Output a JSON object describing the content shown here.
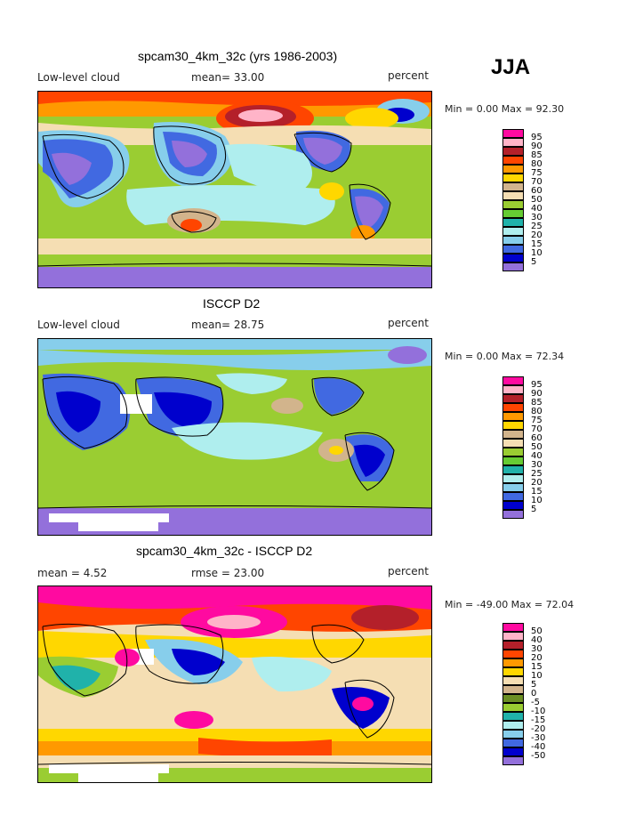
{
  "season": "JJA",
  "panels": [
    {
      "title": "spcam30_4km_32c (yrs 1986-2003)",
      "left": "Low-level cloud",
      "middle": "mean=  33.00",
      "units": "percent",
      "minmax": "Min =   0.00 Max =  92.30",
      "legend_labels": [
        "95",
        "90",
        "85",
        "80",
        "75",
        "70",
        "60",
        "50",
        "40",
        "30",
        "25",
        "20",
        "15",
        "10",
        "5"
      ],
      "legend_colors": [
        "#ff0aa0",
        "#ffb4c8",
        "#b4202a",
        "#ff4500",
        "#ff9900",
        "#ffd700",
        "#d2b48c",
        "#f5deb3",
        "#9acd32",
        "#66cc33",
        "#20b2aa",
        "#afeeee",
        "#87ceeb",
        "#4169e1",
        "#0000cd",
        "#9370db"
      ]
    },
    {
      "title": "ISCCP D2",
      "left": "Low-level cloud",
      "middle": "mean=  28.75",
      "units": "percent",
      "minmax": "Min =   0.00 Max =  72.34",
      "legend_labels": [
        "95",
        "90",
        "85",
        "80",
        "75",
        "70",
        "60",
        "50",
        "40",
        "30",
        "25",
        "20",
        "15",
        "10",
        "5"
      ],
      "legend_colors": [
        "#ff0aa0",
        "#ffb4c8",
        "#b4202a",
        "#ff4500",
        "#ff9900",
        "#ffd700",
        "#d2b48c",
        "#f5deb3",
        "#9acd32",
        "#66cc33",
        "#20b2aa",
        "#afeeee",
        "#87ceeb",
        "#4169e1",
        "#0000cd",
        "#9370db"
      ]
    },
    {
      "title": "spcam30_4km_32c - ISCCP D2",
      "left": "mean =   4.52",
      "middle": "rmse =  23.00",
      "units": "percent",
      "minmax": "Min = -49.00 Max =  72.04",
      "legend_labels": [
        "50",
        "40",
        "30",
        "20",
        "15",
        "10",
        "5",
        "0",
        "-5",
        "-10",
        "-15",
        "-20",
        "-30",
        "-40",
        "-50"
      ],
      "legend_colors": [
        "#ff0aa0",
        "#ffb4c8",
        "#b4202a",
        "#ff4500",
        "#ff9900",
        "#ffd700",
        "#f5deb3",
        "#d2b48c",
        "#6b8e23",
        "#9acd32",
        "#20b2aa",
        "#afeeee",
        "#87ceeb",
        "#4169e1",
        "#0000cd",
        "#9370db"
      ]
    }
  ]
}
